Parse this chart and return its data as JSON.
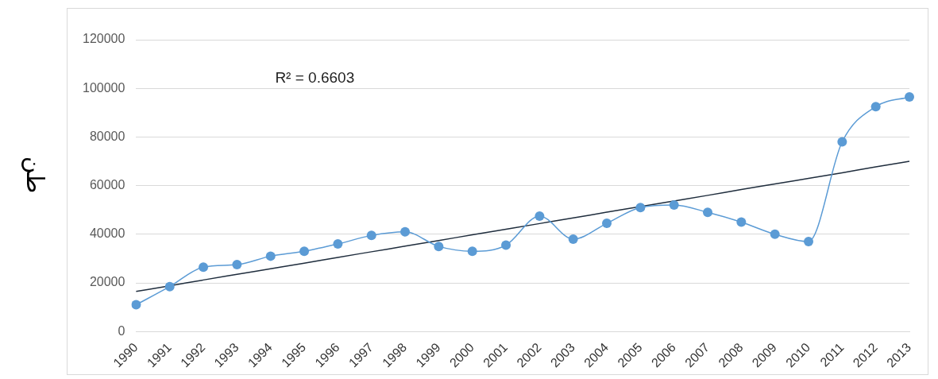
{
  "chart_data": {
    "type": "line",
    "ylabel": "طن",
    "categories": [
      "1990",
      "1991",
      "1992",
      "1993",
      "1994",
      "1995",
      "1996",
      "1997",
      "1998",
      "1999",
      "2000",
      "2001",
      "2002",
      "2003",
      "2004",
      "2005",
      "2006",
      "2007",
      "2008",
      "2009",
      "2010",
      "2011",
      "2012",
      "2013"
    ],
    "series": [
      {
        "color": "#5b9bd5",
        "values": [
          11000,
          18500,
          26500,
          27500,
          31000,
          33000,
          36000,
          39500,
          41000,
          35000,
          33000,
          35500,
          47500,
          38000,
          44500,
          51000,
          52000,
          49000,
          45000,
          40000,
          37000,
          78000,
          92500,
          96500
        ]
      },
      {
        "type": "line",
        "color": "#1f2d3d",
        "marker": "none",
        "values": [
          16500,
          18800,
          21200,
          23500,
          25800,
          28100,
          30500,
          32800,
          35100,
          37400,
          39800,
          42100,
          44400,
          46700,
          49100,
          51400,
          53700,
          56000,
          58400,
          60700,
          63000,
          65300,
          67700,
          70000
        ]
      }
    ],
    "annotations": [
      "R² = 0.6603"
    ],
    "ylim": [
      0,
      120000
    ],
    "yticks": [
      0,
      20000,
      40000,
      60000,
      80000,
      100000,
      120000
    ],
    "grid": "y",
    "legend": false,
    "marker": "circle"
  }
}
